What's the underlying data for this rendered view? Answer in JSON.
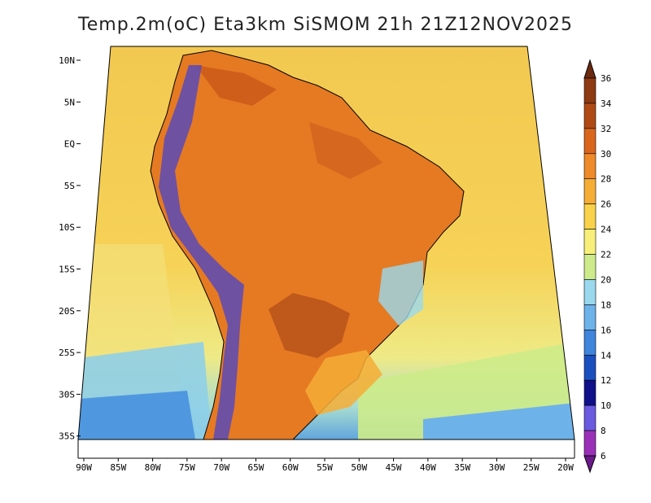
{
  "title": "Temp.2m(oC) Eta3km SiSMOM 21h 21Z12NOV2025",
  "lat_labels": [
    "10N",
    "5N",
    "EQ",
    "5S",
    "10S",
    "15S",
    "20S",
    "25S",
    "30S",
    "35S"
  ],
  "lon_labels": [
    "90W",
    "85W",
    "80W",
    "75W",
    "70W",
    "65W",
    "60W",
    "55W",
    "50W",
    "45W",
    "40W",
    "35W",
    "30W",
    "25W",
    "20W"
  ],
  "colorbar": {
    "labels": [
      "36",
      "34",
      "32",
      "30",
      "28",
      "26",
      "24",
      "22",
      "20",
      "18",
      "16",
      "14",
      "12",
      "10",
      "8",
      "6"
    ],
    "colors": [
      "#6b2a10",
      "#8e3a12",
      "#b04a14",
      "#d9661c",
      "#ef8a2a",
      "#f6ad36",
      "#f9d24a",
      "#f7ef7a",
      "#cdeb8a",
      "#9ad8ee",
      "#6eb2ea",
      "#3f85dc",
      "#1a4fbf",
      "#10108a",
      "#6a5ae0",
      "#9a30b8",
      "#6a1a8a"
    ]
  },
  "map": {
    "ocean_color": "#f6d257",
    "land_color": "#e57a22",
    "hot_color": "#b9521a",
    "andes_color": "#5a4ab8",
    "south_ocean_color": "#4f98e0"
  }
}
